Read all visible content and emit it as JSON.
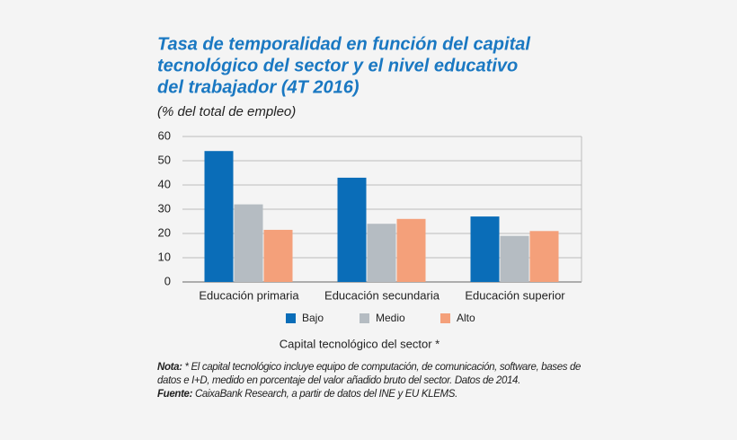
{
  "chart_data": {
    "type": "bar",
    "title": [
      "Tasa de temporalidad en función del capital",
      "tecnológico del sector y el nivel educativo",
      "del trabajador (4T 2016)"
    ],
    "subtitle": "(% del total de empleo)",
    "x_label": "Capital tecnológico del sector *",
    "categories": [
      "Educación primaria",
      "Educación secundaria",
      "Educación superior"
    ],
    "series": [
      {
        "name": "Bajo",
        "color": "#0a6db8",
        "values": [
          54,
          43,
          27
        ]
      },
      {
        "name": "Medio",
        "color": "#b5bcc2",
        "values": [
          32,
          24,
          19
        ]
      },
      {
        "name": "Alto",
        "color": "#f4a07a",
        "values": [
          21.5,
          26,
          21
        ]
      }
    ],
    "ylim": [
      0,
      60
    ],
    "yticks": [
      0,
      10,
      20,
      30,
      40,
      50,
      60
    ],
    "grid": true,
    "note_label": "Nota:",
    "note": "* El capital tecnológico incluye equipo de computación, de comunicación, software, bases de datos e I+D, medido en porcentaje del valor añadido bruto del sector. Datos de 2014.",
    "source_label": "Fuente:",
    "source": "CaixaBank Research, a partir de datos del INE y EU KLEMS."
  }
}
